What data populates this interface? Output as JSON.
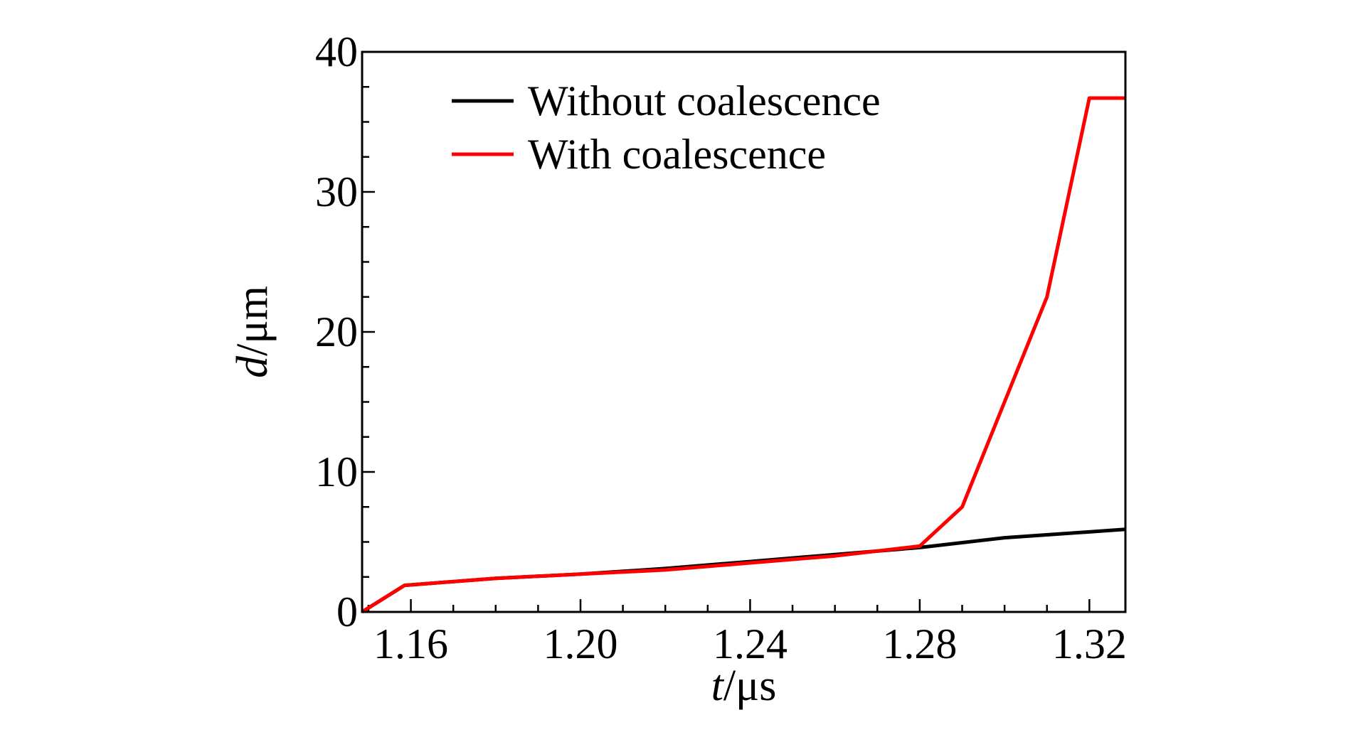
{
  "chart_data": {
    "type": "line",
    "x_axis": {
      "label_var": "t",
      "label_unit": "/μs",
      "ticks": [
        "1.16",
        "1.20",
        "1.24",
        "1.28",
        "1.32"
      ],
      "tick_values": [
        1.16,
        1.2,
        1.24,
        1.28,
        1.32
      ],
      "range": [
        1.1485,
        1.3285
      ],
      "minor_step": 0.01
    },
    "y_axis": {
      "label_var": "d",
      "label_unit": "/μm",
      "ticks": [
        "0",
        "10",
        "20",
        "30",
        "40"
      ],
      "tick_values": [
        0,
        10,
        20,
        30,
        40
      ],
      "range": [
        0,
        40
      ],
      "minor_step": 2.5
    },
    "legend": {
      "position": "top-center",
      "entries": [
        {
          "label": "Without coalescence",
          "color": "#000000"
        },
        {
          "label": "With coalescence",
          "color": "#ff0000"
        }
      ]
    },
    "series": [
      {
        "name": "Without coalescence",
        "color": "#000000",
        "x": [
          1.1485,
          1.1585,
          1.18,
          1.2,
          1.22,
          1.24,
          1.26,
          1.28,
          1.3,
          1.3285
        ],
        "y": [
          0,
          1.9,
          2.4,
          2.7,
          3.1,
          3.6,
          4.1,
          4.6,
          5.3,
          5.9
        ]
      },
      {
        "name": "With coalescence",
        "color": "#ff0000",
        "x": [
          1.1485,
          1.1585,
          1.18,
          1.2,
          1.22,
          1.24,
          1.26,
          1.28,
          1.29,
          1.3,
          1.31,
          1.32,
          1.3285
        ],
        "y": [
          0,
          1.9,
          2.4,
          2.7,
          3.0,
          3.5,
          4.0,
          4.7,
          7.5,
          15.0,
          22.5,
          36.7,
          36.7
        ]
      }
    ]
  }
}
